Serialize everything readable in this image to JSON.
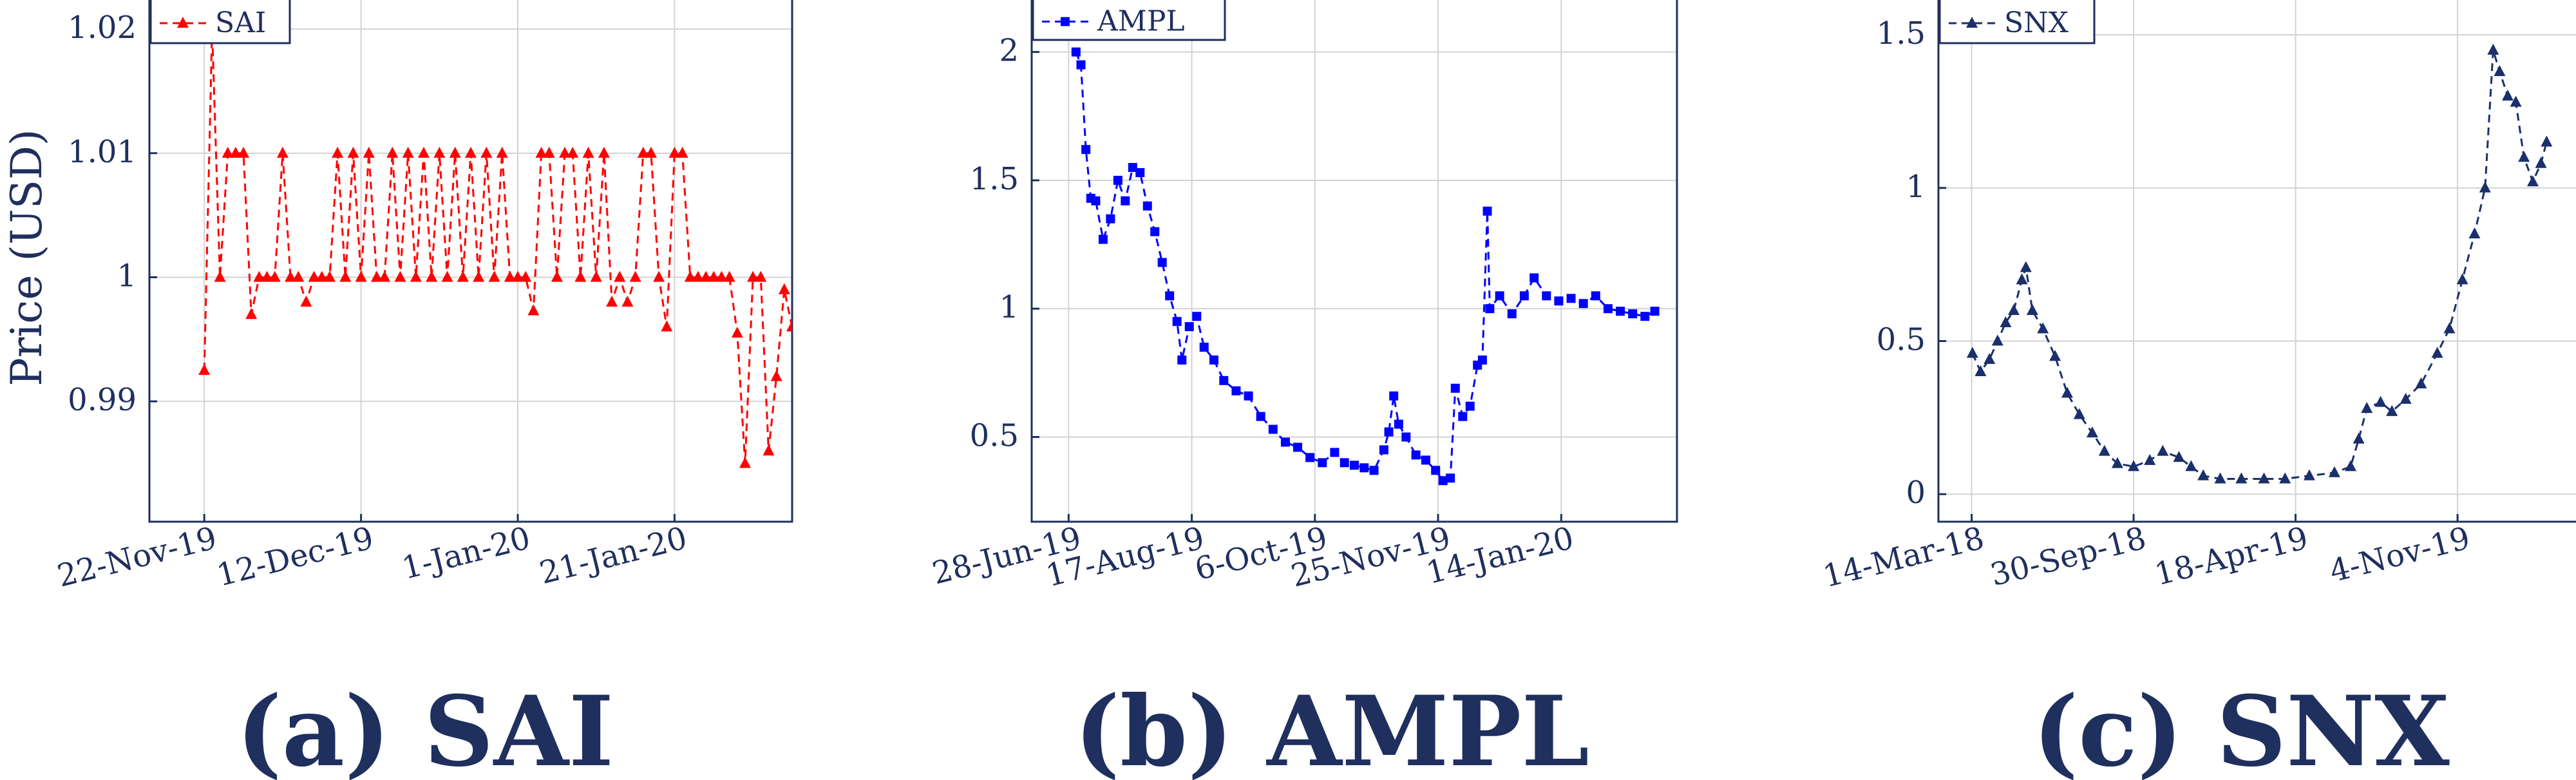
{
  "captions": [
    "(a) SAI",
    "(b) AMPL",
    "(c) SNX"
  ],
  "chart_data": [
    {
      "type": "line",
      "title": "",
      "ylabel": "Price (USD)",
      "xlabel": "",
      "x_ticks": [
        "22-Nov-19",
        "12-Dec-19",
        "1-Jan-20",
        "21-Jan-20"
      ],
      "y_ticks": [
        "0.99",
        "1",
        "1.01",
        "1.02"
      ],
      "ylim": [
        0.9803,
        1.0225
      ],
      "xlim": [
        "2019-11-15",
        "2020-02-05"
      ],
      "grid": true,
      "legend_position": "top-left",
      "series": [
        {
          "name": "SAI",
          "color": "#ff0000",
          "marker": "triangle",
          "line_style": "dashed",
          "points": [
            [
              "2019-11-22",
              0.9925
            ],
            [
              "2019-11-23",
              1.02
            ],
            [
              "2019-11-24",
              1.0
            ],
            [
              "2019-11-25",
              1.01
            ],
            [
              "2019-11-26",
              1.01
            ],
            [
              "2019-11-27",
              1.01
            ],
            [
              "2019-11-28",
              0.997
            ],
            [
              "2019-11-29",
              1.0
            ],
            [
              "2019-11-30",
              1.0
            ],
            [
              "2019-12-01",
              1.0
            ],
            [
              "2019-12-02",
              1.01
            ],
            [
              "2019-12-03",
              1.0
            ],
            [
              "2019-12-04",
              1.0
            ],
            [
              "2019-12-05",
              0.998
            ],
            [
              "2019-12-06",
              1.0
            ],
            [
              "2019-12-07",
              1.0
            ],
            [
              "2019-12-08",
              1.0
            ],
            [
              "2019-12-09",
              1.01
            ],
            [
              "2019-12-10",
              1.0
            ],
            [
              "2019-12-11",
              1.01
            ],
            [
              "2019-12-12",
              1.0
            ],
            [
              "2019-12-13",
              1.01
            ],
            [
              "2019-12-14",
              1.0
            ],
            [
              "2019-12-15",
              1.0
            ],
            [
              "2019-12-16",
              1.01
            ],
            [
              "2019-12-17",
              1.0
            ],
            [
              "2019-12-18",
              1.01
            ],
            [
              "2019-12-19",
              1.0
            ],
            [
              "2019-12-20",
              1.01
            ],
            [
              "2019-12-21",
              1.0
            ],
            [
              "2019-12-22",
              1.01
            ],
            [
              "2019-12-23",
              1.0
            ],
            [
              "2019-12-24",
              1.01
            ],
            [
              "2019-12-25",
              1.0
            ],
            [
              "2019-12-26",
              1.01
            ],
            [
              "2019-12-27",
              1.0
            ],
            [
              "2019-12-28",
              1.01
            ],
            [
              "2019-12-29",
              1.0
            ],
            [
              "2019-12-30",
              1.01
            ],
            [
              "2019-12-31",
              1.0
            ],
            [
              "2020-01-01",
              1.0
            ],
            [
              "2020-01-02",
              1.0
            ],
            [
              "2020-01-03",
              0.9973
            ],
            [
              "2020-01-04",
              1.01
            ],
            [
              "2020-01-05",
              1.01
            ],
            [
              "2020-01-06",
              1.0
            ],
            [
              "2020-01-07",
              1.01
            ],
            [
              "2020-01-08",
              1.01
            ],
            [
              "2020-01-09",
              1.0
            ],
            [
              "2020-01-10",
              1.01
            ],
            [
              "2020-01-11",
              1.0
            ],
            [
              "2020-01-12",
              1.01
            ],
            [
              "2020-01-13",
              0.998
            ],
            [
              "2020-01-14",
              1.0
            ],
            [
              "2020-01-15",
              0.998
            ],
            [
              "2020-01-16",
              1.0
            ],
            [
              "2020-01-17",
              1.01
            ],
            [
              "2020-01-18",
              1.01
            ],
            [
              "2020-01-19",
              1.0
            ],
            [
              "2020-01-20",
              0.996
            ],
            [
              "2020-01-21",
              1.01
            ],
            [
              "2020-01-22",
              1.01
            ],
            [
              "2020-01-23",
              1.0
            ],
            [
              "2020-01-24",
              1.0
            ],
            [
              "2020-01-25",
              1.0
            ],
            [
              "2020-01-26",
              1.0
            ],
            [
              "2020-01-27",
              1.0
            ],
            [
              "2020-01-28",
              1.0
            ],
            [
              "2020-01-29",
              0.9955
            ],
            [
              "2020-01-30",
              0.985
            ],
            [
              "2020-01-31",
              1.0
            ],
            [
              "2020-02-01",
              1.0
            ],
            [
              "2020-02-02",
              0.986
            ],
            [
              "2020-02-03",
              0.992
            ],
            [
              "2020-02-04",
              0.999
            ],
            [
              "2020-02-05",
              0.996
            ]
          ]
        }
      ]
    },
    {
      "type": "line",
      "title": "",
      "ylabel": "",
      "xlabel": "",
      "x_ticks": [
        "28-Jun-19",
        "17-Aug-19",
        "6-Oct-19",
        "25-Nov-19",
        "14-Jan-20"
      ],
      "y_ticks": [
        "0.5",
        "1",
        "1.5",
        "2"
      ],
      "ylim": [
        0.17,
        2.21
      ],
      "xlim": [
        "2019-06-13",
        "2020-03-01"
      ],
      "grid": true,
      "legend_position": "top-left",
      "series": [
        {
          "name": "AMPL",
          "color": "#0000ff",
          "marker": "square",
          "line_style": "dashed",
          "points": [
            [
              "2019-07-01",
              2.0
            ],
            [
              "2019-07-03",
              1.95
            ],
            [
              "2019-07-05",
              1.62
            ],
            [
              "2019-07-07",
              1.43
            ],
            [
              "2019-07-09",
              1.42
            ],
            [
              "2019-07-12",
              1.27
            ],
            [
              "2019-07-15",
              1.35
            ],
            [
              "2019-07-18",
              1.5
            ],
            [
              "2019-07-21",
              1.42
            ],
            [
              "2019-07-24",
              1.55
            ],
            [
              "2019-07-27",
              1.53
            ],
            [
              "2019-07-30",
              1.4
            ],
            [
              "2019-08-02",
              1.3
            ],
            [
              "2019-08-05",
              1.18
            ],
            [
              "2019-08-08",
              1.05
            ],
            [
              "2019-08-11",
              0.95
            ],
            [
              "2019-08-13",
              0.8
            ],
            [
              "2019-08-16",
              0.93
            ],
            [
              "2019-08-19",
              0.97
            ],
            [
              "2019-08-22",
              0.85
            ],
            [
              "2019-08-26",
              0.8
            ],
            [
              "2019-08-30",
              0.72
            ],
            [
              "2019-09-04",
              0.68
            ],
            [
              "2019-09-09",
              0.66
            ],
            [
              "2019-09-14",
              0.58
            ],
            [
              "2019-09-19",
              0.53
            ],
            [
              "2019-09-24",
              0.48
            ],
            [
              "2019-09-29",
              0.46
            ],
            [
              "2019-10-04",
              0.42
            ],
            [
              "2019-10-09",
              0.4
            ],
            [
              "2019-10-14",
              0.44
            ],
            [
              "2019-10-18",
              0.4
            ],
            [
              "2019-10-22",
              0.39
            ],
            [
              "2019-10-26",
              0.38
            ],
            [
              "2019-10-30",
              0.37
            ],
            [
              "2019-11-03",
              0.45
            ],
            [
              "2019-11-05",
              0.52
            ],
            [
              "2019-11-07",
              0.66
            ],
            [
              "2019-11-09",
              0.55
            ],
            [
              "2019-11-12",
              0.5
            ],
            [
              "2019-11-16",
              0.43
            ],
            [
              "2019-11-20",
              0.41
            ],
            [
              "2019-11-24",
              0.37
            ],
            [
              "2019-11-27",
              0.33
            ],
            [
              "2019-11-30",
              0.34
            ],
            [
              "2019-12-02",
              0.69
            ],
            [
              "2019-12-05",
              0.58
            ],
            [
              "2019-12-08",
              0.62
            ],
            [
              "2019-12-11",
              0.78
            ],
            [
              "2019-12-13",
              0.8
            ],
            [
              "2019-12-15",
              1.38
            ],
            [
              "2019-12-16",
              1.0
            ],
            [
              "2019-12-20",
              1.05
            ],
            [
              "2019-12-25",
              0.98
            ],
            [
              "2019-12-30",
              1.05
            ],
            [
              "2020-01-03",
              1.12
            ],
            [
              "2020-01-08",
              1.05
            ],
            [
              "2020-01-13",
              1.03
            ],
            [
              "2020-01-18",
              1.04
            ],
            [
              "2020-01-23",
              1.02
            ],
            [
              "2020-01-28",
              1.05
            ],
            [
              "2020-02-02",
              1.0
            ],
            [
              "2020-02-07",
              0.99
            ],
            [
              "2020-02-12",
              0.98
            ],
            [
              "2020-02-17",
              0.97
            ],
            [
              "2020-02-21",
              0.99
            ]
          ]
        }
      ]
    },
    {
      "type": "line",
      "title": "",
      "ylabel": "",
      "xlabel": "",
      "x_ticks": [
        "14-Mar-18",
        "30-Sep-18",
        "18-Apr-19",
        "4-Nov-19"
      ],
      "y_ticks": [
        "0",
        "0.5",
        "1",
        "1.5"
      ],
      "ylim": [
        -0.09,
        1.62
      ],
      "xlim": [
        "2018-02-01",
        "2020-04-15"
      ],
      "grid": true,
      "legend_position": "top-left",
      "series": [
        {
          "name": "SNX",
          "color": "#1a2f6b",
          "marker": "triangle",
          "line_style": "dashed",
          "points": [
            [
              "2018-03-15",
              0.46
            ],
            [
              "2018-03-25",
              0.4
            ],
            [
              "2018-04-05",
              0.44
            ],
            [
              "2018-04-15",
              0.5
            ],
            [
              "2018-04-25",
              0.56
            ],
            [
              "2018-05-05",
              0.6
            ],
            [
              "2018-05-15",
              0.7
            ],
            [
              "2018-05-20",
              0.74
            ],
            [
              "2018-05-28",
              0.6
            ],
            [
              "2018-06-10",
              0.54
            ],
            [
              "2018-06-25",
              0.45
            ],
            [
              "2018-07-10",
              0.33
            ],
            [
              "2018-07-25",
              0.26
            ],
            [
              "2018-08-10",
              0.2
            ],
            [
              "2018-08-25",
              0.14
            ],
            [
              "2018-09-10",
              0.1
            ],
            [
              "2018-09-30",
              0.09
            ],
            [
              "2018-10-20",
              0.11
            ],
            [
              "2018-11-05",
              0.14
            ],
            [
              "2018-11-25",
              0.12
            ],
            [
              "2018-12-10",
              0.09
            ],
            [
              "2018-12-25",
              0.06
            ],
            [
              "2019-01-15",
              0.05
            ],
            [
              "2019-02-10",
              0.05
            ],
            [
              "2019-03-10",
              0.05
            ],
            [
              "2019-04-05",
              0.05
            ],
            [
              "2019-05-05",
              0.06
            ],
            [
              "2019-06-05",
              0.07
            ],
            [
              "2019-06-25",
              0.09
            ],
            [
              "2019-07-05",
              0.18
            ],
            [
              "2019-07-15",
              0.28
            ],
            [
              "2019-08-01",
              0.3
            ],
            [
              "2019-08-15",
              0.27
            ],
            [
              "2019-09-01",
              0.31
            ],
            [
              "2019-09-20",
              0.36
            ],
            [
              "2019-10-10",
              0.46
            ],
            [
              "2019-10-25",
              0.54
            ],
            [
              "2019-11-10",
              0.7
            ],
            [
              "2019-11-25",
              0.85
            ],
            [
              "2019-12-08",
              1.0
            ],
            [
              "2019-12-18",
              1.45
            ],
            [
              "2019-12-26",
              1.38
            ],
            [
              "2020-01-05",
              1.3
            ],
            [
              "2020-01-15",
              1.28
            ],
            [
              "2020-01-25",
              1.1
            ],
            [
              "2020-02-05",
              1.02
            ],
            [
              "2020-02-15",
              1.08
            ],
            [
              "2020-02-22",
              1.15
            ]
          ]
        }
      ]
    }
  ]
}
